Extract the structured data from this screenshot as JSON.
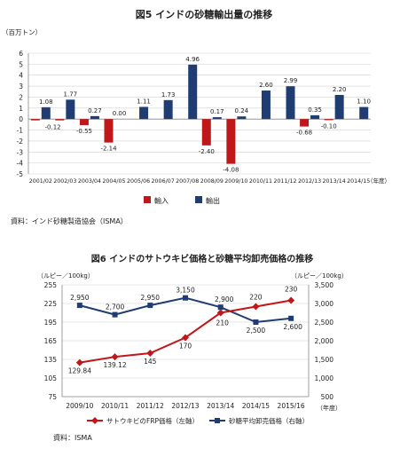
{
  "chart_data": [
    {
      "type": "bar",
      "title": "図5 インドの砂糖輸出量の推移",
      "ylabel": "（百万トン）",
      "xunit": "（年度）",
      "ylim": [
        -5,
        6
      ],
      "yticks": [
        -5,
        -4,
        -3,
        -2,
        -1,
        0,
        1,
        2,
        3,
        4,
        5,
        6
      ],
      "grid": true,
      "categories": [
        "2001/02",
        "2002/03",
        "2003/04",
        "2004/05",
        "2005/06",
        "2006/07",
        "2007/08",
        "2008/09",
        "2009/10",
        "2010/11",
        "2011/12",
        "2012/13",
        "2013/14",
        "2014/15"
      ],
      "series": [
        {
          "name": "輸入",
          "color": "#c0171b",
          "values": [
            -0.12,
            -0.12,
            -0.55,
            -2.14,
            0,
            0,
            0,
            -2.4,
            -4.08,
            0,
            0,
            -0.68,
            -0.1,
            0
          ]
        },
        {
          "name": "輸出",
          "color": "#1f3d73",
          "values": [
            1.08,
            1.77,
            0.27,
            0.0,
            1.11,
            1.73,
            4.96,
            0.17,
            0.24,
            2.6,
            2.99,
            0.35,
            2.2,
            1.1
          ]
        }
      ],
      "data_labels": [
        "1.08",
        "1.77",
        "-0.12",
        "0.27",
        "-0.55",
        "0.00",
        "-2.14",
        "1.11",
        "1.73",
        "4.96",
        "0.17",
        "-2.40",
        "0.24",
        "-4.08",
        "2.60",
        "2.99",
        "0.35",
        "-0.68",
        "2.20",
        "-0.10",
        "1.10"
      ],
      "legend_position": "bottom",
      "source": "資料：インド砂糖製造協会（ISMA）"
    },
    {
      "type": "line",
      "title": "図6 インドのサトウキビ価格と砂糖平均卸売価格の推移",
      "ylabel_left": "（ルピー／100kg）",
      "ylabel_right": "（ルピー／100kg）",
      "xunit": "（年度）",
      "categories": [
        "2009/10",
        "2010/11",
        "2011/12",
        "2012/13",
        "2013/14",
        "2014/15",
        "2015/16"
      ],
      "ylim_left": [
        75,
        255
      ],
      "yticks_left": [
        75,
        105,
        135,
        165,
        195,
        225,
        255
      ],
      "ylim_right": [
        500,
        3500
      ],
      "yticks_right": [
        500,
        1000,
        1500,
        2000,
        2500,
        3000,
        3500
      ],
      "yticks_right_labels": [
        "500",
        "1,000",
        "1,500",
        "2,000",
        "2,500",
        "3,000",
        "3,500"
      ],
      "grid": true,
      "series": [
        {
          "name": "サトウキビのFRP価格（左軸）",
          "axis": "left",
          "color": "#c0171b",
          "marker": "diamond",
          "values": [
            129.84,
            139.12,
            145,
            170,
            210,
            220,
            230
          ],
          "labels": [
            "129.84",
            "139.12",
            "145",
            "170",
            "210",
            "220",
            "230"
          ]
        },
        {
          "name": "砂糖平均卸売価格（右軸）",
          "axis": "right",
          "color": "#1f3d73",
          "marker": "square",
          "values": [
            2950,
            2700,
            2950,
            3150,
            2900,
            2500,
            2600
          ],
          "labels": [
            "2,950",
            "2,700",
            "2,950",
            "3,150",
            "2,900",
            "2,500",
            "2,600"
          ]
        }
      ],
      "legend_position": "bottom",
      "source": "資料：ISMA"
    }
  ]
}
